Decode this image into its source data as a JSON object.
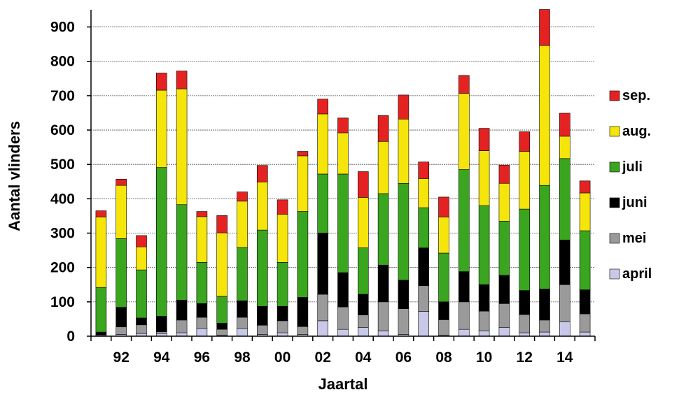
{
  "chart_data": {
    "type": "bar",
    "stacked": true,
    "xlabel": "Jaartal",
    "ylabel": "Aantal vlinders",
    "ylim": [
      0,
      950
    ],
    "yticks": [
      0,
      100,
      200,
      300,
      400,
      500,
      600,
      700,
      800,
      900
    ],
    "categories": [
      "91",
      "92",
      "93",
      "94",
      "95",
      "96",
      "97",
      "98",
      "99",
      "00",
      "01",
      "02",
      "03",
      "04",
      "05",
      "06",
      "07",
      "08",
      "09",
      "10",
      "11",
      "12",
      "13",
      "14",
      "15"
    ],
    "xtick_labels": [
      "",
      "92",
      "",
      "94",
      "",
      "96",
      "",
      "98",
      "",
      "00",
      "",
      "02",
      "",
      "04",
      "",
      "06",
      "",
      "08",
      "",
      "10",
      "",
      "12",
      "",
      "14",
      ""
    ],
    "grid": "horizontal",
    "legend_position": "right",
    "series": [
      {
        "name": "april",
        "color": "#c8c8e8",
        "values": [
          1,
          5,
          8,
          8,
          10,
          22,
          3,
          22,
          5,
          10,
          5,
          45,
          20,
          25,
          15,
          5,
          72,
          3,
          20,
          15,
          25,
          10,
          12,
          42,
          12
        ]
      },
      {
        "name": "mei",
        "color": "#9a9a9a",
        "values": [
          3,
          22,
          25,
          5,
          37,
          33,
          17,
          33,
          27,
          35,
          23,
          77,
          65,
          37,
          85,
          75,
          75,
          45,
          80,
          58,
          70,
          53,
          35,
          108,
          53
        ]
      },
      {
        "name": "juni",
        "color": "#000000",
        "values": [
          8,
          57,
          20,
          45,
          58,
          40,
          18,
          48,
          55,
          42,
          85,
          178,
          100,
          60,
          107,
          83,
          110,
          52,
          88,
          77,
          82,
          70,
          90,
          130,
          70
        ]
      },
      {
        "name": "juli",
        "color": "#3aa51e",
        "values": [
          130,
          200,
          140,
          433,
          278,
          120,
          78,
          155,
          222,
          128,
          250,
          172,
          287,
          135,
          208,
          282,
          117,
          142,
          297,
          230,
          158,
          237,
          302,
          237,
          172
        ]
      },
      {
        "name": "aug.",
        "color": "#f5e50a",
        "values": [
          205,
          155,
          67,
          225,
          337,
          133,
          185,
          135,
          140,
          140,
          162,
          175,
          120,
          147,
          152,
          187,
          85,
          105,
          222,
          160,
          110,
          168,
          407,
          65,
          110
        ]
      },
      {
        "name": "sep.",
        "color": "#e52222",
        "values": [
          18,
          18,
          33,
          50,
          52,
          15,
          50,
          27,
          48,
          42,
          13,
          43,
          43,
          75,
          75,
          70,
          48,
          58,
          52,
          65,
          53,
          57,
          105,
          67,
          35
        ]
      }
    ]
  }
}
